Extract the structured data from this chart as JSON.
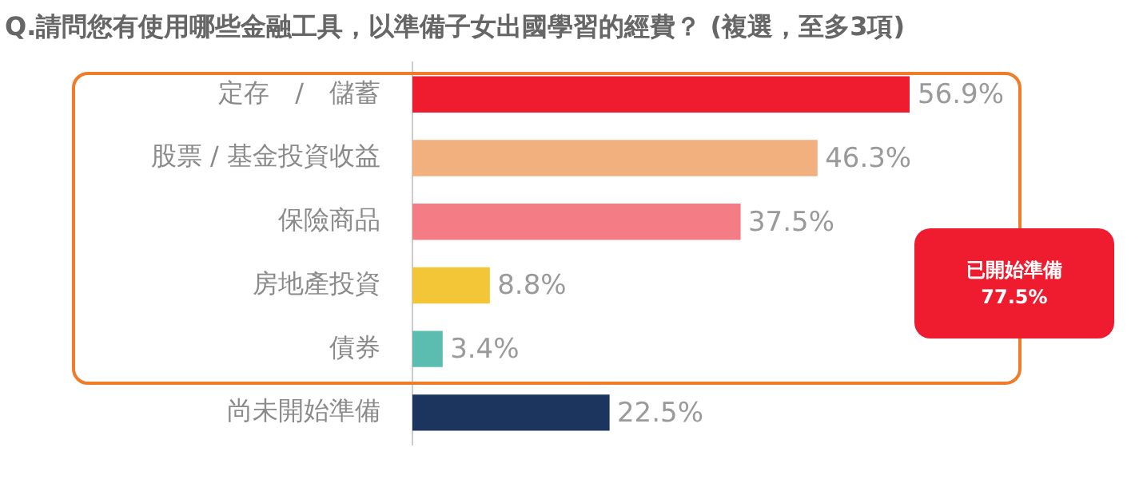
{
  "chart_data": {
    "type": "bar",
    "orientation": "horizontal",
    "title": "Q.請問您有使用哪些金融工具，以準備子女出國學習的經費？ (複選，至多3項)",
    "categories": [
      "定存　/　儲蓄",
      "股票 / 基金投資收益",
      "保險商品",
      "房地產投資",
      "債券",
      "尚未開始準備"
    ],
    "values": [
      56.9,
      46.3,
      37.5,
      8.8,
      3.4,
      22.5
    ],
    "colors": [
      "#ee1c2e",
      "#f2b07e",
      "#f47c84",
      "#f2c636",
      "#5bbcb0",
      "#1c355e"
    ],
    "value_labels": [
      "56.9%",
      "46.3%",
      "37.5%",
      "8.8%",
      "3.4%",
      "22.5%"
    ],
    "legend": false,
    "annotations": [
      "已開始準備\n77.5%"
    ]
  }
}
